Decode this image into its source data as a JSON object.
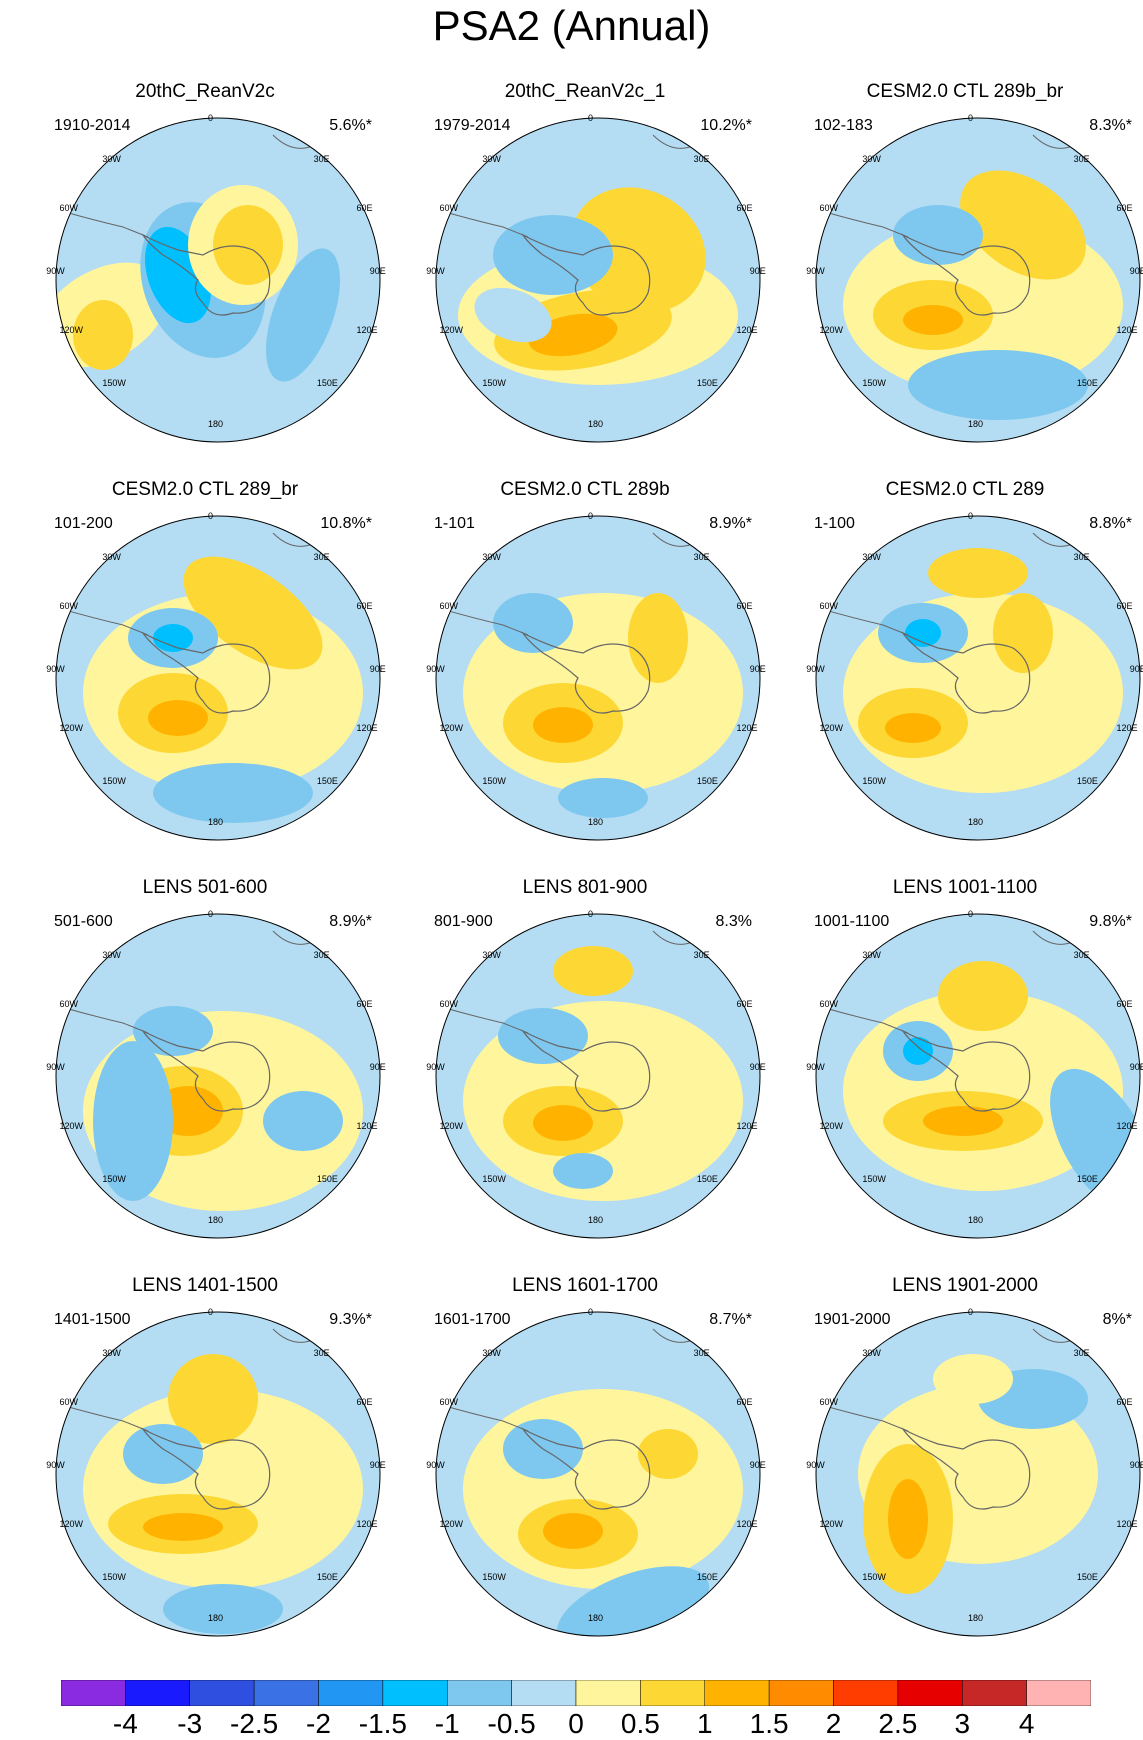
{
  "title": "PSA2 (Annual)",
  "panels": [
    {
      "title": "20thC_ReanV2c",
      "period": "1910-2014",
      "pct": "5.6%*"
    },
    {
      "title": "20thC_ReanV2c_1",
      "period": "1979-2014",
      "pct": "10.2%*"
    },
    {
      "title": "CESM2.0 CTL 289b_br",
      "period": "102-183",
      "pct": "8.3%*"
    },
    {
      "title": "CESM2.0 CTL 289_br",
      "period": "101-200",
      "pct": "10.8%*"
    },
    {
      "title": "CESM2.0 CTL 289b",
      "period": "1-101",
      "pct": "8.9%*"
    },
    {
      "title": "CESM2.0 CTL 289",
      "period": "1-100",
      "pct": "8.8%*"
    },
    {
      "title": "LENS 501-600",
      "period": "501-600",
      "pct": "8.9%*"
    },
    {
      "title": "LENS 801-900",
      "period": "801-900",
      "pct": "8.3%"
    },
    {
      "title": "LENS 1001-1100",
      "period": "1001-1100",
      "pct": "9.8%*"
    },
    {
      "title": "LENS 1401-1500",
      "period": "1401-1500",
      "pct": "9.3%*"
    },
    {
      "title": "LENS 1601-1700",
      "period": "1601-1700",
      "pct": "8.7%*"
    },
    {
      "title": "LENS 1901-2000",
      "period": "1901-2000",
      "pct": "8%*"
    }
  ],
  "longitude_labels": [
    "0",
    "30E",
    "60E",
    "90E",
    "120E",
    "150E",
    "180",
    "150W",
    "120W",
    "90W",
    "60W",
    "30W"
  ],
  "colorbar": {
    "labels": [
      "-4",
      "-3",
      "-2.5",
      "-2",
      "-1.5",
      "-1",
      "-0.5",
      "0",
      "0.5",
      "1",
      "1.5",
      "2",
      "2.5",
      "3",
      "4"
    ],
    "colors": [
      "#8a2be2",
      "#1a1aff",
      "#2f4fe0",
      "#3a72e6",
      "#2196f3",
      "#00bfff",
      "#7ec8f0",
      "#b4dcf2",
      "#fff59d",
      "#fdd835",
      "#ffb300",
      "#ff8c00",
      "#ff3d00",
      "#e60000",
      "#c62828",
      "#ffb3b3"
    ]
  },
  "map_colors": {
    "ocean_bg": "#b4dcf2",
    "coast": "#666666"
  }
}
